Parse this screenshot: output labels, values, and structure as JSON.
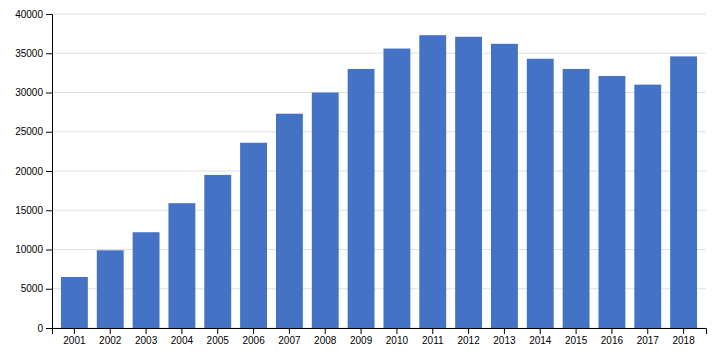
{
  "chart_data": {
    "type": "bar",
    "categories": [
      "2001",
      "2002",
      "2003",
      "2004",
      "2005",
      "2006",
      "2007",
      "2008",
      "2009",
      "2010",
      "2011",
      "2012",
      "2013",
      "2014",
      "2015",
      "2016",
      "2017",
      "2018"
    ],
    "values": [
      6500,
      9900,
      12200,
      15900,
      19500,
      23600,
      27300,
      30000,
      33000,
      35600,
      37300,
      37100,
      36200,
      34300,
      33000,
      32100,
      31000,
      34600
    ],
    "color": "#4472C4",
    "ylim": [
      0,
      40000
    ],
    "yticks": [
      0,
      5000,
      10000,
      15000,
      20000,
      25000,
      30000,
      35000,
      40000
    ],
    "grid": true
  }
}
